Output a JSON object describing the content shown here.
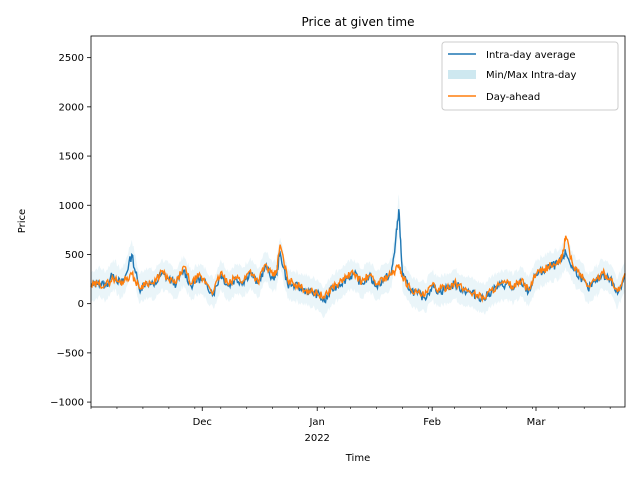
{
  "chart_data": {
    "type": "line",
    "title": "Price at given time",
    "xlabel": "Time",
    "ylabel": "Price",
    "xlim": [
      "2021-11-01",
      "2022-03-25"
    ],
    "ylim": [
      -1050,
      2720
    ],
    "y_ticks": [
      -1000,
      -500,
      0,
      500,
      1000,
      1500,
      2000,
      2500
    ],
    "x_ticks": [
      {
        "date": "2021-12-01",
        "label": "Dec",
        "sublabel": ""
      },
      {
        "date": "2022-01-01",
        "label": "Jan",
        "sublabel": "2022"
      },
      {
        "date": "2022-02-01",
        "label": "Feb",
        "sublabel": ""
      },
      {
        "date": "2022-03-01",
        "label": "Mar",
        "sublabel": ""
      }
    ],
    "grid": false,
    "legend": "upper-right",
    "series": [
      {
        "name": "Intra-day average",
        "kind": "line",
        "color": "#1f77b4",
        "x": [
          "2021-11-01",
          "2021-11-03",
          "2021-11-05",
          "2021-11-07",
          "2021-11-09",
          "2021-11-10",
          "2021-11-12",
          "2021-11-14",
          "2021-11-16",
          "2021-11-18",
          "2021-11-20",
          "2021-11-22",
          "2021-11-24",
          "2021-11-26",
          "2021-11-28",
          "2021-11-30",
          "2021-12-02",
          "2021-12-04",
          "2021-12-06",
          "2021-12-08",
          "2021-12-10",
          "2021-12-12",
          "2021-12-14",
          "2021-12-16",
          "2021-12-18",
          "2021-12-20",
          "2021-12-21",
          "2021-12-22",
          "2021-12-24",
          "2021-12-26",
          "2021-12-28",
          "2021-12-30",
          "2022-01-01",
          "2022-01-03",
          "2022-01-05",
          "2022-01-07",
          "2022-01-09",
          "2022-01-11",
          "2022-01-13",
          "2022-01-15",
          "2022-01-17",
          "2022-01-19",
          "2022-01-21",
          "2022-01-22",
          "2022-01-23",
          "2022-01-24",
          "2022-01-26",
          "2022-01-28",
          "2022-01-30",
          "2022-02-01",
          "2022-02-03",
          "2022-02-05",
          "2022-02-07",
          "2022-02-09",
          "2022-02-11",
          "2022-02-13",
          "2022-02-15",
          "2022-02-17",
          "2022-02-19",
          "2022-02-21",
          "2022-02-23",
          "2022-02-25",
          "2022-02-27",
          "2022-03-01",
          "2022-03-03",
          "2022-03-05",
          "2022-03-07",
          "2022-03-08",
          "2022-03-09",
          "2022-03-11",
          "2022-03-13",
          "2022-03-15",
          "2022-03-17",
          "2022-03-19",
          "2022-03-21",
          "2022-03-23",
          "2022-03-25"
        ],
        "y": [
          170,
          220,
          180,
          300,
          200,
          250,
          500,
          150,
          220,
          180,
          300,
          250,
          200,
          340,
          180,
          260,
          200,
          100,
          300,
          180,
          250,
          220,
          320,
          200,
          380,
          260,
          300,
          520,
          200,
          180,
          150,
          120,
          100,
          20,
          150,
          200,
          260,
          300,
          200,
          280,
          180,
          250,
          300,
          580,
          960,
          280,
          150,
          100,
          60,
          180,
          120,
          160,
          200,
          150,
          120,
          80,
          50,
          130,
          180,
          200,
          150,
          220,
          120,
          300,
          330,
          380,
          400,
          450,
          520,
          350,
          280,
          150,
          220,
          300,
          250,
          100,
          300
        ]
      },
      {
        "name": "Min/Max Intra-day",
        "kind": "band",
        "color": "#add8e6",
        "note": "faint min/max range around average, approx ±150 with sparse spikes"
      },
      {
        "name": "Day-ahead",
        "kind": "line",
        "color": "#ff7f0e",
        "x": [
          "2021-11-01",
          "2021-11-03",
          "2021-11-05",
          "2021-11-07",
          "2021-11-09",
          "2021-11-10",
          "2021-11-12",
          "2021-11-14",
          "2021-11-16",
          "2021-11-18",
          "2021-11-20",
          "2021-11-22",
          "2021-11-24",
          "2021-11-26",
          "2021-11-28",
          "2021-11-30",
          "2021-12-02",
          "2021-12-04",
          "2021-12-06",
          "2021-12-08",
          "2021-12-10",
          "2021-12-12",
          "2021-12-14",
          "2021-12-16",
          "2021-12-18",
          "2021-12-20",
          "2021-12-21",
          "2021-12-22",
          "2021-12-24",
          "2021-12-26",
          "2021-12-28",
          "2021-12-30",
          "2022-01-01",
          "2022-01-03",
          "2022-01-05",
          "2022-01-07",
          "2022-01-09",
          "2022-01-11",
          "2022-01-13",
          "2022-01-15",
          "2022-01-17",
          "2022-01-19",
          "2022-01-21",
          "2022-01-22",
          "2022-01-23",
          "2022-01-24",
          "2022-01-26",
          "2022-01-28",
          "2022-01-30",
          "2022-02-01",
          "2022-02-03",
          "2022-02-05",
          "2022-02-07",
          "2022-02-09",
          "2022-02-11",
          "2022-02-13",
          "2022-02-15",
          "2022-02-17",
          "2022-02-19",
          "2022-02-21",
          "2022-02-23",
          "2022-02-25",
          "2022-02-27",
          "2022-03-01",
          "2022-03-03",
          "2022-03-05",
          "2022-03-07",
          "2022-03-08",
          "2022-03-09",
          "2022-03-11",
          "2022-03-13",
          "2022-03-15",
          "2022-03-17",
          "2022-03-19",
          "2022-03-21",
          "2022-03-23",
          "2022-03-25"
        ],
        "y": [
          180,
          200,
          190,
          260,
          210,
          240,
          300,
          160,
          220,
          200,
          330,
          240,
          210,
          380,
          200,
          280,
          220,
          120,
          320,
          190,
          270,
          230,
          340,
          220,
          400,
          280,
          320,
          600,
          250,
          200,
          160,
          130,
          110,
          60,
          170,
          210,
          280,
          310,
          220,
          290,
          200,
          260,
          300,
          330,
          400,
          270,
          160,
          110,
          80,
          190,
          140,
          170,
          210,
          160,
          130,
          90,
          60,
          140,
          190,
          210,
          170,
          230,
          140,
          300,
          340,
          390,
          410,
          470,
          690,
          380,
          300,
          180,
          240,
          310,
          260,
          120,
          310
        ]
      }
    ]
  }
}
